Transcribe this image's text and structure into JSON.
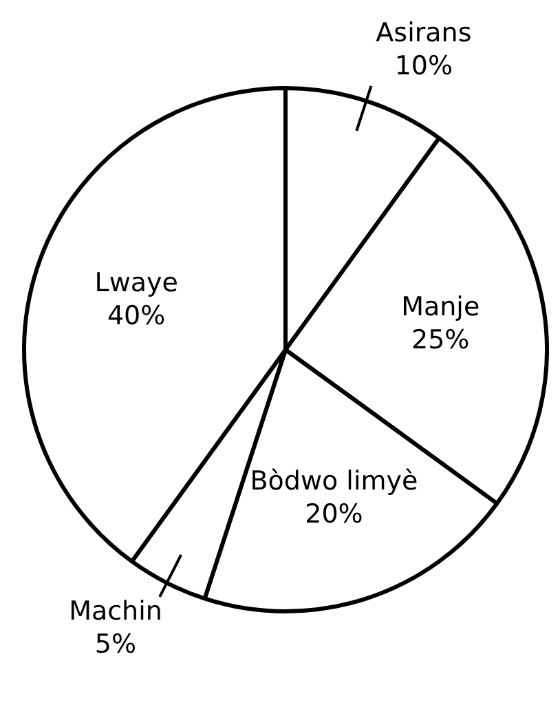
{
  "chart_data": {
    "type": "pie",
    "categories": [
      "Asirans",
      "Manje",
      "Bòdwo limyè",
      "Machin",
      "Lwaye"
    ],
    "values": [
      10,
      25,
      20,
      5,
      40
    ],
    "colors": [
      "#ffffff",
      "#ffffff",
      "#ffffff",
      "#ffffff",
      "#ffffff"
    ],
    "value_labels": [
      "10%",
      "25%",
      "20%",
      "5%",
      "40%"
    ],
    "legend": false
  }
}
